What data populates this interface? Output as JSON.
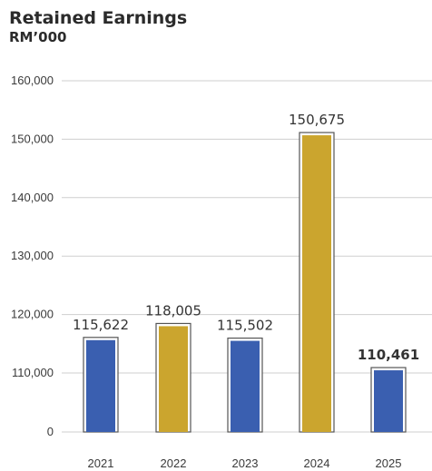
{
  "chart_data": {
    "type": "bar",
    "title": "Retained Earnings",
    "subtitle": "RM’000",
    "categories": [
      "2021",
      "2022",
      "2023",
      "2024",
      "2025"
    ],
    "values": [
      115622,
      118005,
      115502,
      150675,
      110461
    ],
    "value_labels": [
      "115,622",
      "118,005",
      "115,502",
      "150,675",
      "110,461"
    ],
    "highlight_bold_label": "2025",
    "y_ticks": [
      {
        "value": 0,
        "label": "0"
      },
      {
        "value": 110000,
        "label": "110,000"
      },
      {
        "value": 120000,
        "label": "120,000"
      },
      {
        "value": 130000,
        "label": "130,000"
      },
      {
        "value": 140000,
        "label": "140,000"
      },
      {
        "value": 150000,
        "label": "150,000"
      },
      {
        "value": 160000,
        "label": "160,000"
      }
    ],
    "y_axis_break": "broken axis between 0 and 110,000",
    "grid": true,
    "colors": {
      "2021": "#3a5fb0",
      "2022": "#cba52e",
      "2023": "#3a5fb0",
      "2024": "#cba52e",
      "2025": "#3a5fb0"
    },
    "bar_outline": "#555555",
    "gridline_color": "#cfcfcf"
  }
}
